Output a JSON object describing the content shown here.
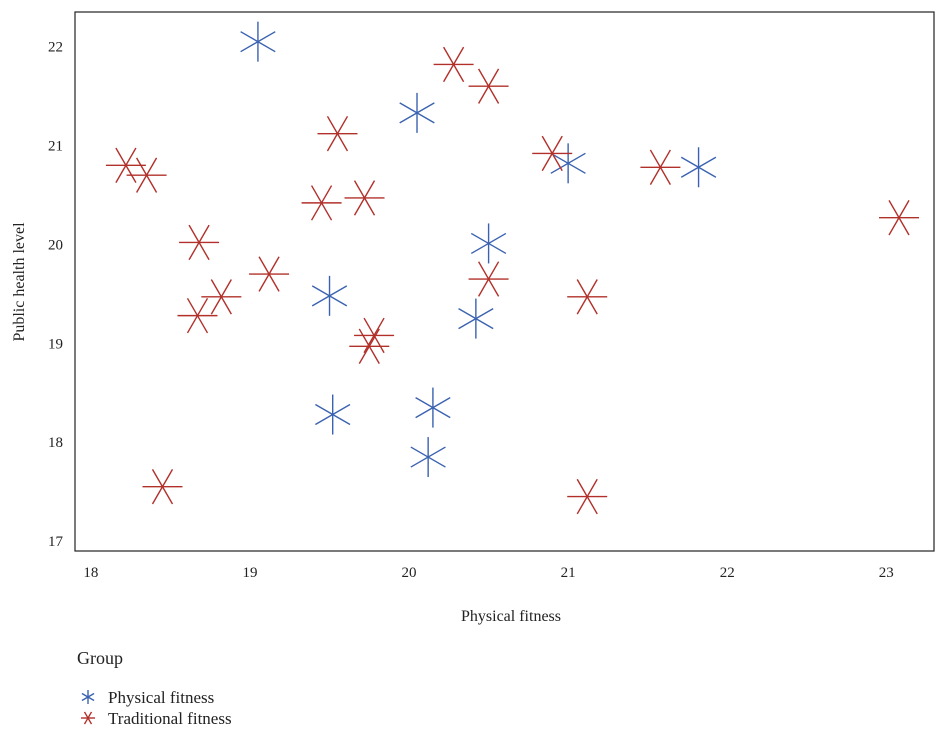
{
  "chart_data": {
    "type": "scatter",
    "title": "",
    "xlabel": "Physical fitness",
    "ylabel": "Public health level",
    "xlim": [
      17.9,
      23.3
    ],
    "ylim": [
      16.9,
      22.35
    ],
    "xticks": [
      18,
      19,
      20,
      21,
      22,
      23
    ],
    "yticks": [
      17,
      18,
      19,
      20,
      21,
      22
    ],
    "grid": false,
    "legend": {
      "title": "Group",
      "position": "bottom-left"
    },
    "series": [
      {
        "name": "Physical fitness",
        "color": "#3a62b0",
        "marker": "asterisk-vertical",
        "points": [
          [
            19.05,
            22.05
          ],
          [
            20.05,
            21.33
          ],
          [
            21.0,
            20.82
          ],
          [
            21.82,
            20.78
          ],
          [
            20.5,
            20.01
          ],
          [
            19.5,
            19.48
          ],
          [
            20.42,
            19.25
          ],
          [
            19.52,
            18.28
          ],
          [
            20.15,
            18.35
          ],
          [
            20.12,
            17.85
          ]
        ]
      },
      {
        "name": "Traditional fitness",
        "color": "#b2302a",
        "marker": "asterisk-horizontal",
        "points": [
          [
            20.28,
            21.82
          ],
          [
            20.5,
            21.6
          ],
          [
            19.55,
            21.12
          ],
          [
            20.9,
            20.92
          ],
          [
            18.22,
            20.8
          ],
          [
            18.35,
            20.7
          ],
          [
            21.58,
            20.78
          ],
          [
            23.08,
            20.27
          ],
          [
            19.72,
            20.47
          ],
          [
            19.45,
            20.42
          ],
          [
            18.68,
            20.02
          ],
          [
            19.12,
            19.7
          ],
          [
            20.5,
            19.65
          ],
          [
            18.82,
            19.47
          ],
          [
            18.67,
            19.28
          ],
          [
            21.12,
            19.47
          ],
          [
            19.78,
            19.08
          ],
          [
            19.75,
            18.97
          ],
          [
            18.45,
            17.55
          ],
          [
            21.12,
            17.45
          ]
        ]
      }
    ]
  }
}
